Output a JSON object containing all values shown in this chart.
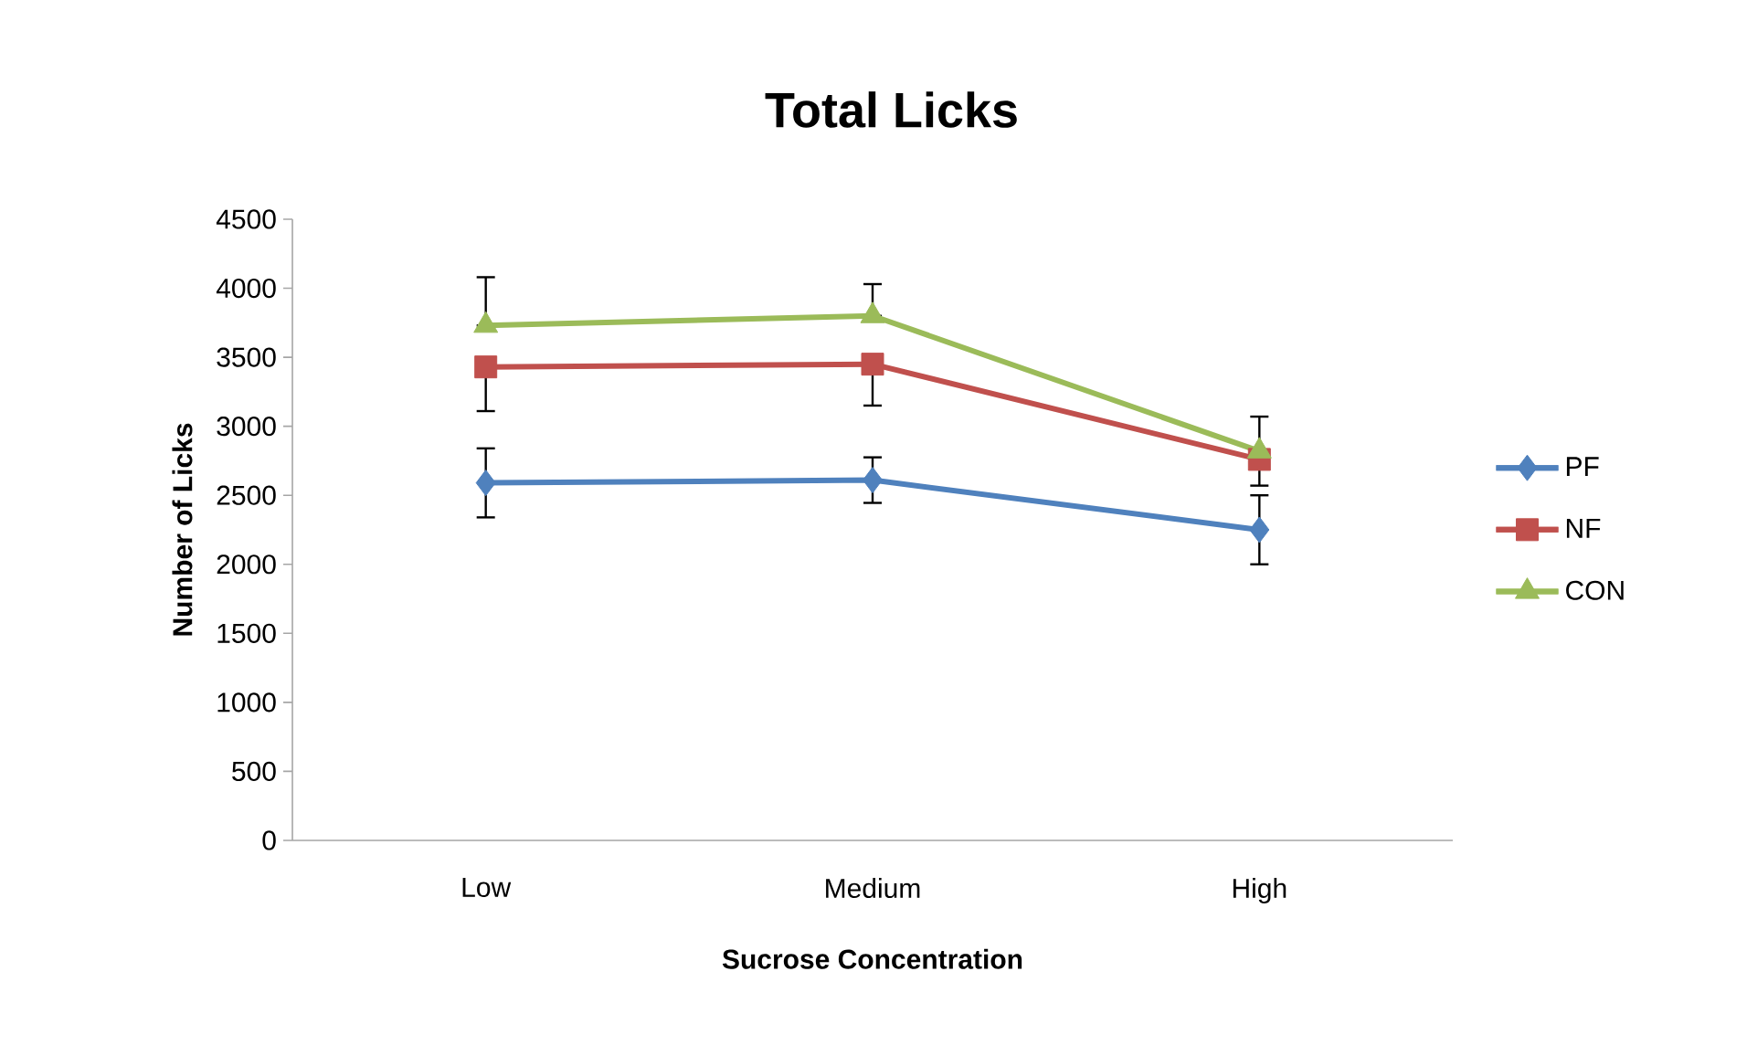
{
  "chart_data": {
    "type": "line",
    "title": "Total Licks",
    "xlabel": "Sucrose Concentration",
    "ylabel": "Number of Licks",
    "categories": [
      "Low",
      "Medium",
      "High"
    ],
    "series": [
      {
        "name": "PF",
        "color": "#4f81bd",
        "marker": "diamond",
        "values": [
          2590,
          2610,
          2250
        ],
        "errors": [
          250,
          165,
          250
        ]
      },
      {
        "name": "NF",
        "color": "#c0504d",
        "marker": "square",
        "values": [
          3430,
          3450,
          2760
        ],
        "errors": [
          [
            3110,
            3430
          ],
          [
            3150,
            3450
          ],
          [
            2570,
            2760
          ]
        ]
      },
      {
        "name": "CON",
        "color": "#9bbb59",
        "marker": "triangle",
        "values": [
          3730,
          3800,
          2820
        ],
        "errors": [
          [
            3730,
            4080
          ],
          [
            3800,
            4030
          ],
          [
            2820,
            3070
          ]
        ]
      }
    ],
    "ylim": [
      0,
      4500
    ],
    "yticks": [
      0,
      500,
      1000,
      1500,
      2000,
      2500,
      3000,
      3500,
      4000,
      4500
    ],
    "grid": false,
    "legend": "right"
  }
}
